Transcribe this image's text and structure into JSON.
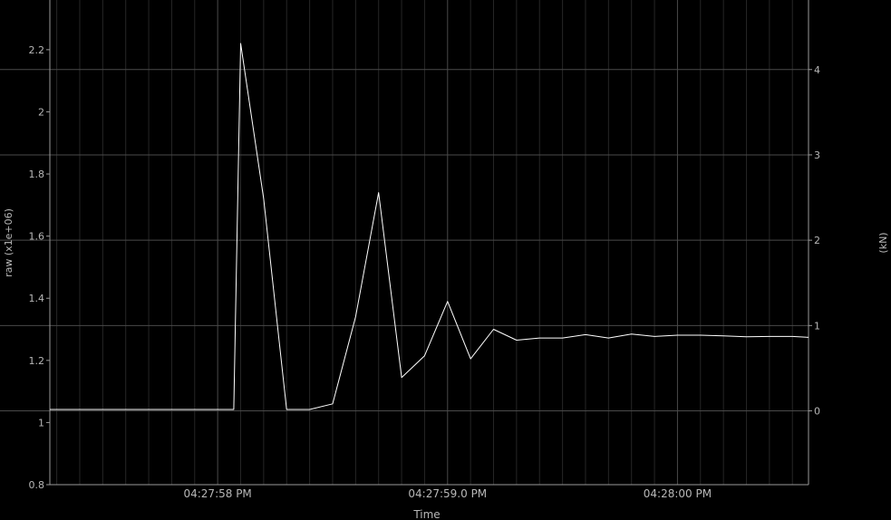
{
  "chart_data": {
    "type": "line",
    "title": "",
    "xlabel": "Time",
    "ylabel": "raw (x1e+06)",
    "y2label": "(kN)",
    "ylim": [
      0.8,
      2.36
    ],
    "y2lim": [
      -0.865,
      4.815
    ],
    "grid": true,
    "x_ticks": [
      {
        "label": "04:27:58 PM",
        "t": 58.0
      },
      {
        "label": "04:27:59.0 PM",
        "t": 59.0
      },
      {
        "label": "04:28:00 PM",
        "t": 60.0
      }
    ],
    "x_range": [
      57.27,
      60.57
    ],
    "y_ticks": [
      "0.8",
      "1",
      "1.2",
      "1.4",
      "1.6",
      "1.8",
      "2",
      "2.2"
    ],
    "y2_ticks": [
      "0",
      "1",
      "2",
      "3",
      "4"
    ],
    "series": [
      {
        "color": "#ffffff",
        "x": [
          57.27,
          57.37,
          57.47,
          57.57,
          57.67,
          57.77,
          57.87,
          57.97,
          58.07,
          58.1,
          58.2,
          58.3,
          58.4,
          58.5,
          58.6,
          58.7,
          58.8,
          58.9,
          59.0,
          59.1,
          59.2,
          59.3,
          59.4,
          59.5,
          59.6,
          59.7,
          59.8,
          59.9,
          60.0,
          60.1,
          60.2,
          60.3,
          60.4,
          60.5,
          60.57
        ],
        "y": [
          1.042,
          1.042,
          1.042,
          1.042,
          1.042,
          1.042,
          1.042,
          1.042,
          1.042,
          2.22,
          1.72,
          1.042,
          1.042,
          1.06,
          1.34,
          1.74,
          1.145,
          1.215,
          1.39,
          1.205,
          1.3,
          1.265,
          1.272,
          1.272,
          1.283,
          1.272,
          1.285,
          1.277,
          1.281,
          1.281,
          1.279,
          1.276,
          1.277,
          1.277,
          1.274
        ]
      }
    ]
  }
}
